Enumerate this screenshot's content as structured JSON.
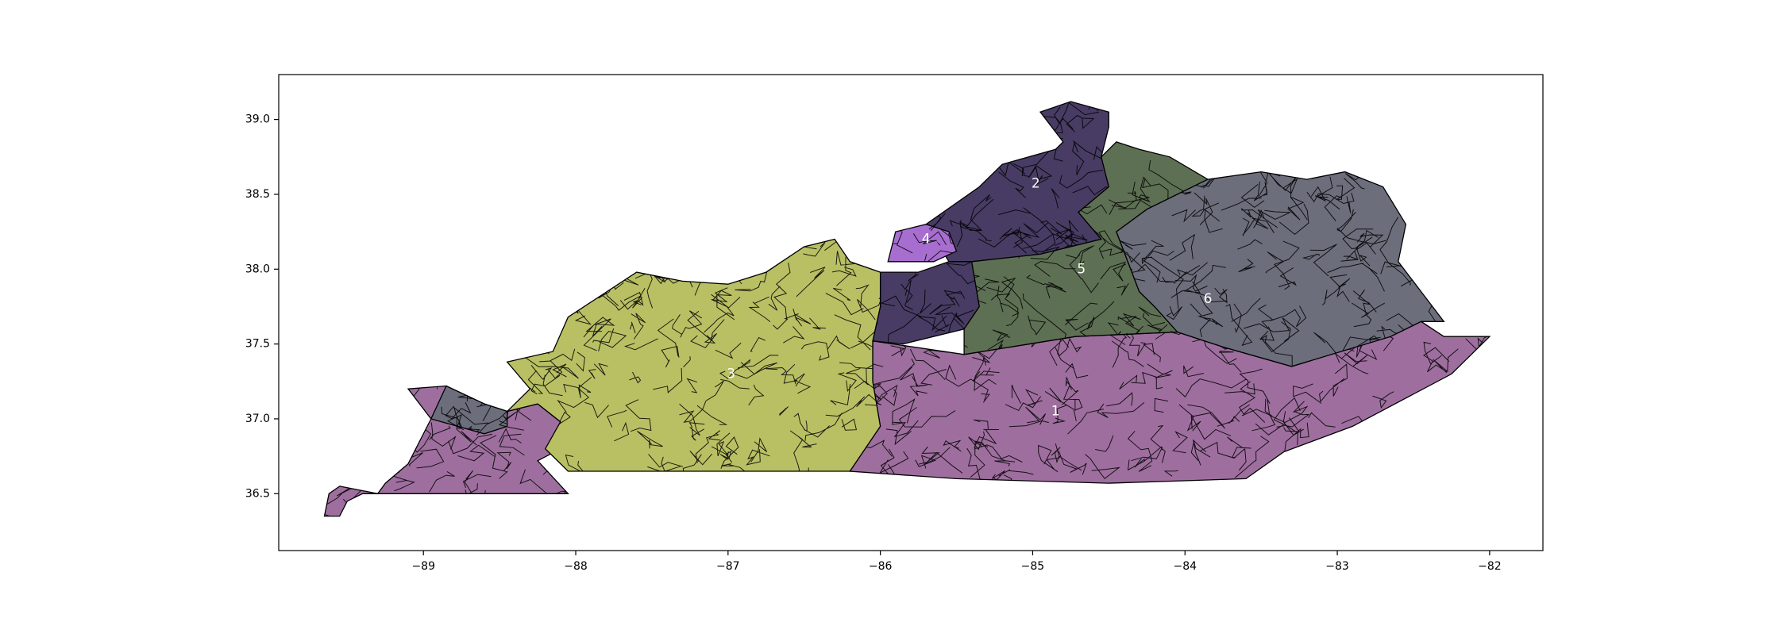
{
  "map": {
    "xlim": [
      -89.95,
      -81.65
    ],
    "ylim": [
      36.12,
      39.3
    ],
    "x_ticks": [
      {
        "value": -89,
        "label": "−89"
      },
      {
        "value": -88,
        "label": "−88"
      },
      {
        "value": -87,
        "label": "−87"
      },
      {
        "value": -86,
        "label": "−86"
      },
      {
        "value": -85,
        "label": "−85"
      },
      {
        "value": -84,
        "label": "−84"
      },
      {
        "value": -83,
        "label": "−83"
      },
      {
        "value": -82,
        "label": "−82"
      }
    ],
    "y_ticks": [
      {
        "value": 36.5,
        "label": "36.5"
      },
      {
        "value": 37.0,
        "label": "37.0"
      },
      {
        "value": 37.5,
        "label": "37.5"
      },
      {
        "value": 38.0,
        "label": "38.0"
      },
      {
        "value": 38.5,
        "label": "38.5"
      },
      {
        "value": 39.0,
        "label": "39.0"
      }
    ],
    "grid": false,
    "legend": "none"
  },
  "districts": [
    {
      "id": 1,
      "label": "1",
      "color": "#9e6f9e",
      "label_at": [
        -84.85,
        37.05
      ],
      "polygons": [
        [
          [
            -86.05,
            37.52
          ],
          [
            -85.45,
            37.43
          ],
          [
            -84.72,
            37.55
          ],
          [
            -84.05,
            37.58
          ],
          [
            -83.75,
            37.48
          ],
          [
            -83.3,
            37.35
          ],
          [
            -82.65,
            37.55
          ],
          [
            -82.45,
            37.65
          ],
          [
            -82.3,
            37.55
          ],
          [
            -82.0,
            37.55
          ],
          [
            -82.25,
            37.3
          ],
          [
            -82.9,
            36.95
          ],
          [
            -83.35,
            36.78
          ],
          [
            -83.6,
            36.6
          ],
          [
            -84.5,
            36.57
          ],
          [
            -85.5,
            36.6
          ],
          [
            -86.2,
            36.65
          ],
          [
            -86.0,
            36.95
          ],
          [
            -86.05,
            37.25
          ]
        ],
        [
          [
            -89.55,
            36.55
          ],
          [
            -89.3,
            36.5
          ],
          [
            -89.25,
            36.57
          ],
          [
            -89.1,
            36.7
          ],
          [
            -88.95,
            37.0
          ],
          [
            -89.1,
            37.2
          ],
          [
            -88.85,
            37.22
          ],
          [
            -88.6,
            37.1
          ],
          [
            -88.45,
            37.05
          ],
          [
            -88.25,
            37.1
          ],
          [
            -88.1,
            36.98
          ],
          [
            -88.1,
            36.8
          ],
          [
            -88.25,
            36.72
          ],
          [
            -88.05,
            36.5
          ],
          [
            -88.5,
            36.5
          ],
          [
            -89.4,
            36.5
          ],
          [
            -89.5,
            36.45
          ],
          [
            -89.55,
            36.35
          ],
          [
            -89.65,
            36.35
          ],
          [
            -89.62,
            36.5
          ]
        ]
      ]
    },
    {
      "id": 2,
      "label": "2",
      "color": "#483c64",
      "label_at": [
        -84.98,
        38.57
      ],
      "polygons": [
        [
          [
            -85.55,
            38.05
          ],
          [
            -85.7,
            38.3
          ],
          [
            -85.35,
            38.55
          ],
          [
            -85.2,
            38.7
          ],
          [
            -84.85,
            38.8
          ],
          [
            -84.8,
            38.85
          ],
          [
            -84.95,
            39.05
          ],
          [
            -84.75,
            39.12
          ],
          [
            -84.5,
            39.05
          ],
          [
            -84.5,
            38.95
          ],
          [
            -84.55,
            38.75
          ],
          [
            -84.5,
            38.55
          ],
          [
            -84.7,
            38.38
          ],
          [
            -84.55,
            38.2
          ],
          [
            -84.95,
            38.1
          ],
          [
            -85.4,
            38.05
          ]
        ],
        [
          [
            -86.0,
            37.98
          ],
          [
            -85.75,
            37.98
          ],
          [
            -85.55,
            38.05
          ],
          [
            -85.4,
            38.05
          ],
          [
            -85.35,
            37.75
          ],
          [
            -85.45,
            37.6
          ],
          [
            -85.85,
            37.5
          ],
          [
            -86.05,
            37.52
          ],
          [
            -86.0,
            37.75
          ]
        ]
      ]
    },
    {
      "id": 3,
      "label": "3",
      "color": "#b9c064",
      "label_at": [
        -86.98,
        37.3
      ],
      "polygons": [
        [
          [
            -88.45,
            37.38
          ],
          [
            -88.15,
            37.45
          ],
          [
            -88.05,
            37.68
          ],
          [
            -87.6,
            37.98
          ],
          [
            -87.3,
            37.92
          ],
          [
            -87.0,
            37.9
          ],
          [
            -86.75,
            37.98
          ],
          [
            -86.5,
            38.15
          ],
          [
            -86.3,
            38.2
          ],
          [
            -86.2,
            38.05
          ],
          [
            -86.0,
            37.98
          ],
          [
            -86.0,
            37.75
          ],
          [
            -86.05,
            37.52
          ],
          [
            -86.05,
            37.25
          ],
          [
            -86.0,
            36.95
          ],
          [
            -86.2,
            36.65
          ],
          [
            -87.2,
            36.65
          ],
          [
            -88.05,
            36.65
          ],
          [
            -88.2,
            36.8
          ],
          [
            -88.1,
            36.98
          ],
          [
            -88.25,
            37.1
          ],
          [
            -88.45,
            37.05
          ],
          [
            -88.3,
            37.2
          ]
        ]
      ]
    },
    {
      "id": 4,
      "label": "4",
      "color": "#a76ed0",
      "label_at": [
        -85.7,
        38.2
      ],
      "polygons": [
        [
          [
            -85.9,
            38.25
          ],
          [
            -85.7,
            38.3
          ],
          [
            -85.55,
            38.25
          ],
          [
            -85.5,
            38.12
          ],
          [
            -85.65,
            38.05
          ],
          [
            -85.95,
            38.05
          ]
        ]
      ]
    },
    {
      "id": 5,
      "label": "5",
      "color": "#5e7054",
      "label_at": [
        -84.68,
        38.0
      ],
      "polygons": [
        [
          [
            -85.45,
            37.43
          ],
          [
            -85.45,
            37.6
          ],
          [
            -85.35,
            37.75
          ],
          [
            -85.4,
            38.05
          ],
          [
            -84.95,
            38.1
          ],
          [
            -84.55,
            38.2
          ],
          [
            -84.7,
            38.38
          ],
          [
            -84.5,
            38.55
          ],
          [
            -84.55,
            38.75
          ],
          [
            -84.45,
            38.85
          ],
          [
            -84.3,
            38.8
          ],
          [
            -84.1,
            38.75
          ],
          [
            -83.85,
            38.6
          ],
          [
            -84.25,
            38.4
          ],
          [
            -84.45,
            38.25
          ],
          [
            -84.3,
            37.85
          ],
          [
            -84.2,
            37.75
          ],
          [
            -84.05,
            37.58
          ],
          [
            -84.72,
            37.55
          ]
        ]
      ]
    },
    {
      "id": 6,
      "label": "6",
      "color": "#6c6e7c",
      "label_at": [
        -83.85,
        37.8
      ],
      "polygons": [
        [
          [
            -84.05,
            37.58
          ],
          [
            -84.2,
            37.75
          ],
          [
            -84.3,
            37.85
          ],
          [
            -84.45,
            38.25
          ],
          [
            -84.25,
            38.4
          ],
          [
            -83.85,
            38.6
          ],
          [
            -83.5,
            38.65
          ],
          [
            -83.2,
            38.6
          ],
          [
            -82.95,
            38.65
          ],
          [
            -82.7,
            38.55
          ],
          [
            -82.55,
            38.3
          ],
          [
            -82.6,
            38.05
          ],
          [
            -82.45,
            37.85
          ],
          [
            -82.3,
            37.65
          ],
          [
            -82.45,
            37.65
          ],
          [
            -82.65,
            37.55
          ],
          [
            -83.3,
            37.35
          ],
          [
            -83.75,
            37.48
          ]
        ],
        [
          [
            -88.6,
            37.1
          ],
          [
            -88.85,
            37.22
          ],
          [
            -88.95,
            37.0
          ],
          [
            -88.6,
            36.9
          ],
          [
            -88.45,
            36.95
          ],
          [
            -88.45,
            37.05
          ]
        ]
      ]
    }
  ]
}
